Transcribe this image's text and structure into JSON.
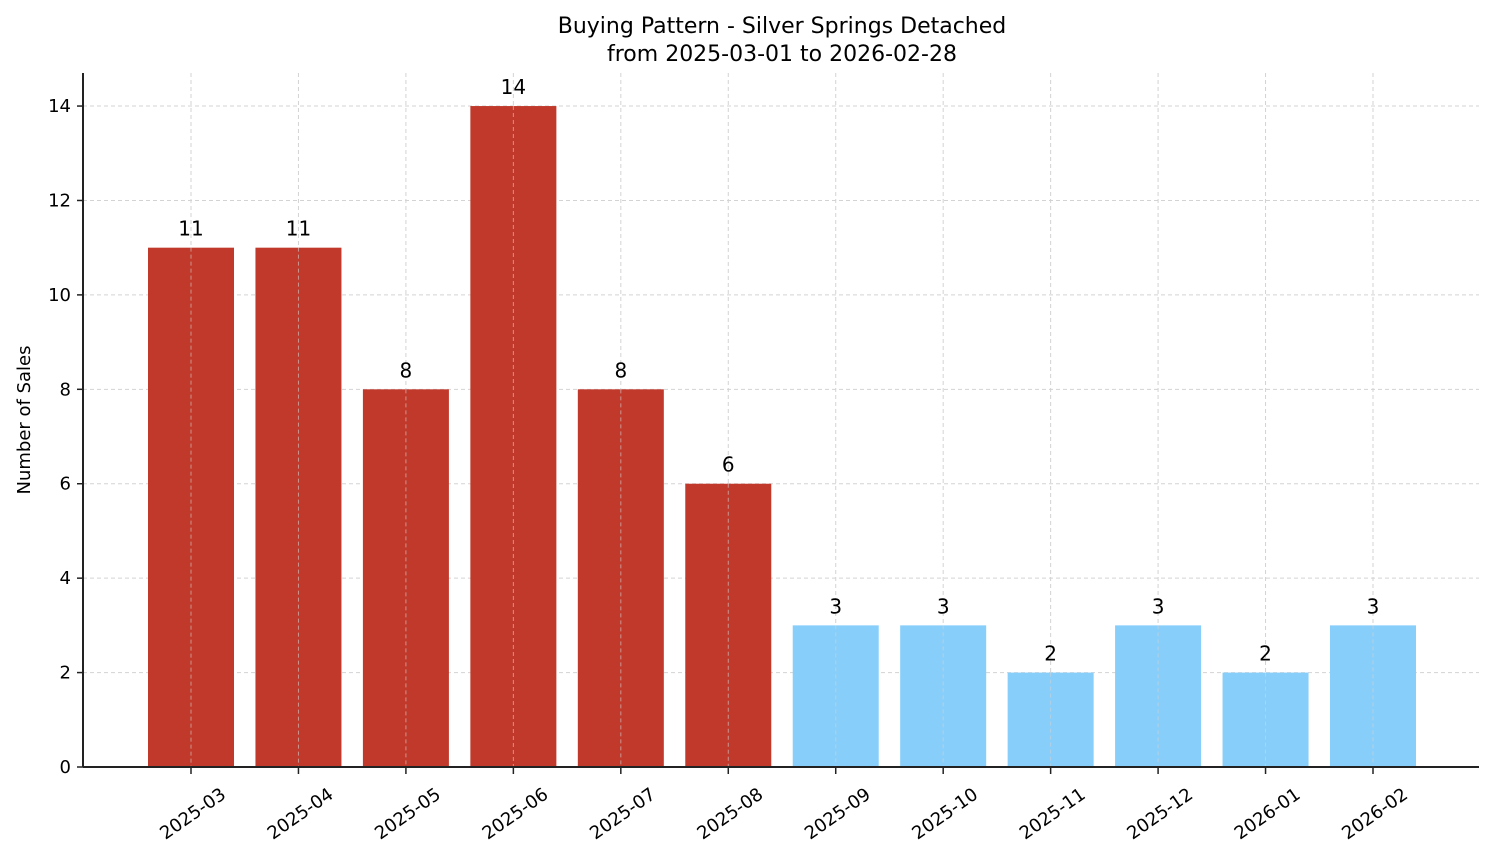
{
  "chart_data": {
    "type": "bar",
    "title": "Buying Pattern - Silver Springs Detached",
    "subtitle": "from 2025-03-01 to 2026-02-28",
    "xlabel": "",
    "ylabel": "Number of Sales",
    "categories": [
      "2025-03",
      "2025-04",
      "2025-05",
      "2025-06",
      "2025-07",
      "2025-08",
      "2025-09",
      "2025-10",
      "2025-11",
      "2025-12",
      "2026-01",
      "2026-02"
    ],
    "values": [
      11,
      11,
      8,
      14,
      8,
      6,
      3,
      3,
      2,
      3,
      2,
      3
    ],
    "bar_colors": [
      "#c0392b",
      "#c0392b",
      "#c0392b",
      "#c0392b",
      "#c0392b",
      "#c0392b",
      "#87cefa",
      "#87cefa",
      "#87cefa",
      "#87cefa",
      "#87cefa",
      "#87cefa"
    ],
    "yticks": [
      0,
      2,
      4,
      6,
      8,
      10,
      12,
      14
    ],
    "ylim": [
      0,
      14.7
    ],
    "grid": true,
    "legend": null
  }
}
